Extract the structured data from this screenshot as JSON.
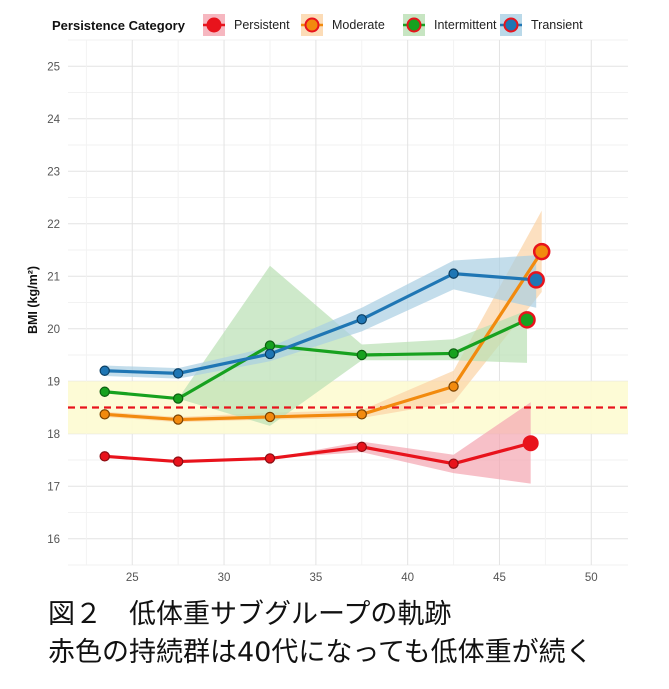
{
  "chart_data": {
    "type": "line",
    "legend_title": "Persistence Category",
    "ylabel": "BMI (kg/m²)",
    "xlabel": "",
    "xlim": [
      21.5,
      52
    ],
    "ylim": [
      15.5,
      25.5
    ],
    "x_ticks": [
      25,
      30,
      35,
      40,
      45,
      50
    ],
    "y_ticks": [
      16,
      17,
      18,
      19,
      20,
      21,
      22,
      23,
      24,
      25
    ],
    "reference_line": 18.5,
    "reference_band": [
      18,
      19
    ],
    "series": [
      {
        "name": "Persistent",
        "color": "#e8131c",
        "fill": "#f4a5b0",
        "marker_fill": "#e8131c",
        "marker_stroke": "#8b0d12",
        "x": [
          23.5,
          27.5,
          32.5,
          37.5,
          42.5,
          46.7
        ],
        "y": [
          17.57,
          17.47,
          17.53,
          17.75,
          17.43,
          17.82
        ],
        "lower": [
          17.57,
          17.47,
          17.53,
          17.65,
          17.25,
          17.05
        ],
        "upper": [
          17.57,
          17.47,
          17.53,
          17.85,
          17.6,
          18.6
        ]
      },
      {
        "name": "Moderate",
        "color": "#f28a0e",
        "fill": "#fbd3a5",
        "marker_fill": "#f28a0e",
        "marker_stroke": "#7a4200",
        "x": [
          23.5,
          27.5,
          32.5,
          37.5,
          42.5,
          47.3
        ],
        "y": [
          18.37,
          18.27,
          18.32,
          18.37,
          18.9,
          21.47
        ],
        "lower": [
          18.32,
          18.22,
          18.27,
          18.3,
          18.6,
          20.7
        ],
        "upper": [
          18.42,
          18.32,
          18.4,
          18.45,
          19.2,
          22.25
        ]
      },
      {
        "name": "Intermittent",
        "color": "#17a11f",
        "fill": "#b9dfb3",
        "marker_fill": "#17a11f",
        "marker_stroke": "#0c5e10",
        "x": [
          23.5,
          27.5,
          32.5,
          37.5,
          42.5,
          46.5
        ],
        "y": [
          18.8,
          18.67,
          19.68,
          19.5,
          19.53,
          20.17
        ],
        "lower": [
          18.8,
          18.67,
          18.15,
          19.4,
          19.4,
          19.35
        ],
        "upper": [
          18.8,
          18.67,
          21.2,
          19.7,
          19.8,
          20.35
        ]
      },
      {
        "name": "Transient",
        "color": "#1f76b4",
        "fill": "#a9cfe3",
        "marker_fill": "#1f76b4",
        "marker_stroke": "#0c3f63",
        "x": [
          23.5,
          27.5,
          32.5,
          37.5,
          42.5,
          47.0
        ],
        "y": [
          19.2,
          19.15,
          19.52,
          20.18,
          21.05,
          20.93
        ],
        "lower": [
          19.1,
          19.05,
          19.38,
          19.95,
          20.75,
          20.4
        ],
        "upper": [
          19.3,
          19.25,
          19.65,
          20.4,
          21.3,
          21.4
        ]
      }
    ],
    "grid": true,
    "legend_position": "top"
  },
  "caption": {
    "line1": "図２　低体重サブグループの軌跡",
    "line2": "赤色の持続群は40代になっても低体重が続く"
  }
}
